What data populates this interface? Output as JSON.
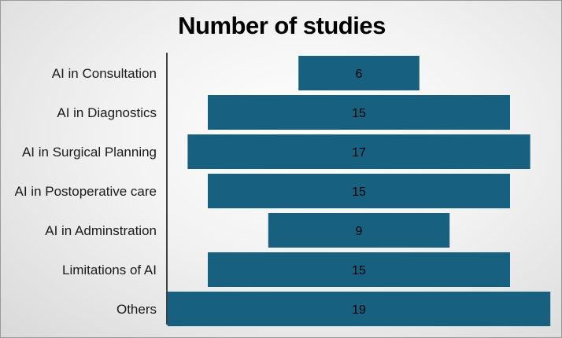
{
  "chart_data": {
    "type": "bar",
    "orientation": "horizontal",
    "alignment": "centered",
    "title": "Number of studies",
    "categories": [
      "AI in Consultation",
      "AI in Diagnostics",
      "AI in Surgical Planning",
      "AI in Postoperative care",
      "AI in Adminstration",
      "Limitations of AI",
      "Others"
    ],
    "values": [
      6,
      15,
      17,
      15,
      9,
      15,
      19
    ],
    "data_labels": [
      "6",
      "15",
      "17",
      "15",
      "9",
      "15",
      "19"
    ],
    "xlim": [
      0,
      19
    ],
    "grid": false,
    "legend": "none",
    "bar_color": "#17607f"
  }
}
